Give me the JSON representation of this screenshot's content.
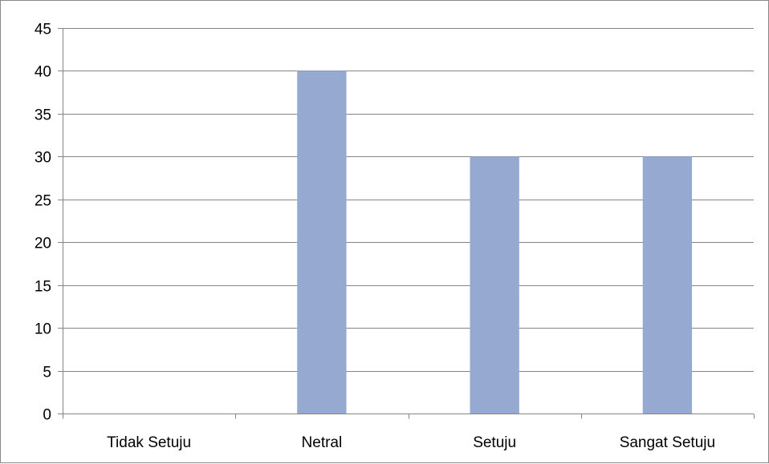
{
  "chart_data": {
    "type": "bar",
    "title": "",
    "xlabel": "",
    "ylabel": "",
    "categories": [
      "Tidak Setuju",
      "Netral",
      "Setuju",
      "Sangat Setuju"
    ],
    "values": [
      0,
      40,
      30,
      30
    ],
    "ylim": [
      0,
      45
    ],
    "yticks": [
      0,
      5,
      10,
      15,
      20,
      25,
      30,
      35,
      40,
      45
    ],
    "grid": true,
    "legend": "none",
    "bar_color": "#95a9d1",
    "grid_color": "#868686"
  }
}
